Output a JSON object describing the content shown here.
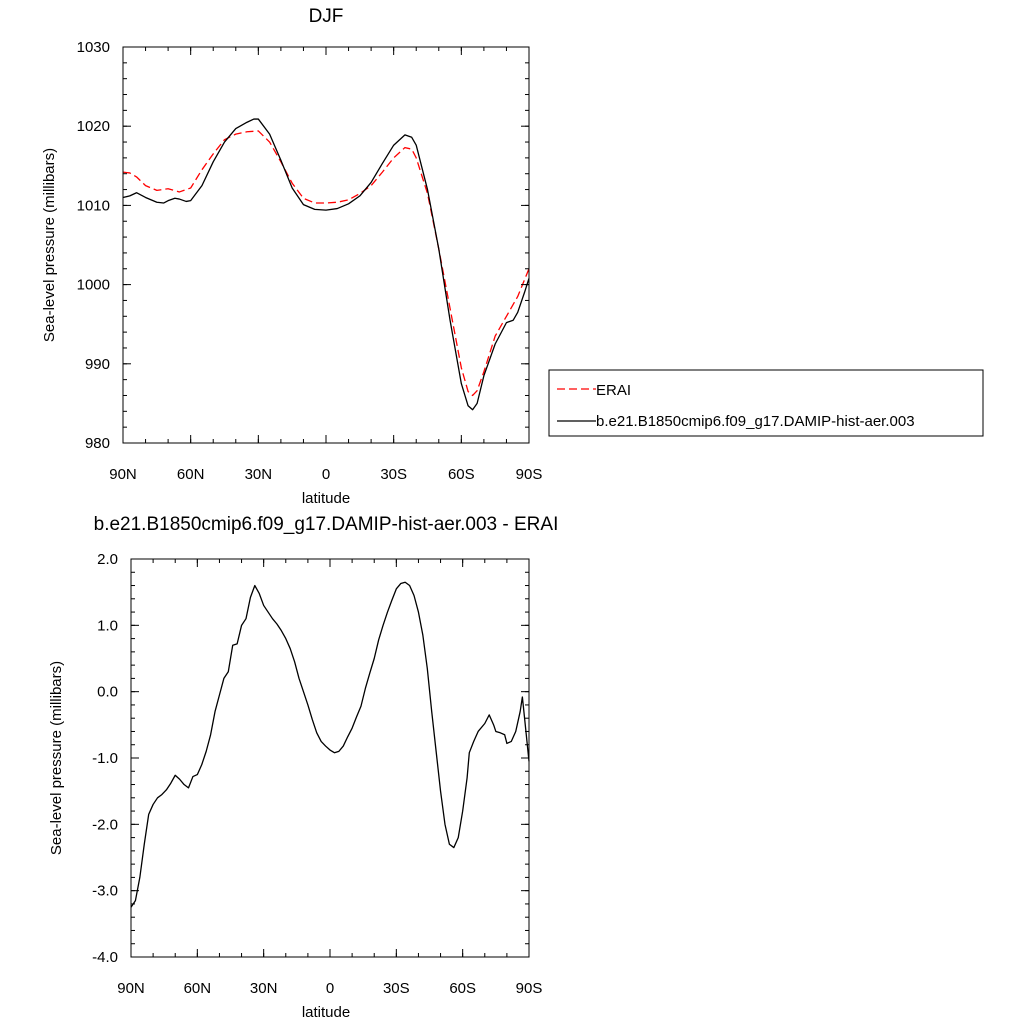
{
  "chart_data": [
    {
      "type": "line",
      "title": "DJF",
      "xlabel": "latitude",
      "ylabel": "Sea-level pressure (millibars)",
      "xlim": [
        90,
        -90
      ],
      "ylim": [
        980,
        1030
      ],
      "x_ticks": [
        {
          "value": 90,
          "label": "90N"
        },
        {
          "value": 60,
          "label": "60N"
        },
        {
          "value": 30,
          "label": "30N"
        },
        {
          "value": 0,
          "label": "0"
        },
        {
          "value": -30,
          "label": "30S"
        },
        {
          "value": -60,
          "label": "60S"
        },
        {
          "value": -90,
          "label": "90S"
        }
      ],
      "y_ticks": [
        {
          "value": 980,
          "label": "980"
        },
        {
          "value": 990,
          "label": "990"
        },
        {
          "value": 1000,
          "label": "1000"
        },
        {
          "value": 1010,
          "label": "1010"
        },
        {
          "value": 1020,
          "label": "1020"
        },
        {
          "value": 1030,
          "label": "1030"
        }
      ],
      "legend_position": "right",
      "series": [
        {
          "name": "ERAI",
          "color": "#ff0000",
          "style": "dashed",
          "x": [
            90,
            87,
            84,
            80,
            75,
            70,
            65,
            60,
            55,
            50,
            45,
            40,
            35,
            30,
            25,
            20,
            15,
            10,
            5,
            0,
            -5,
            -10,
            -15,
            -20,
            -25,
            -30,
            -35,
            -38,
            -40,
            -45,
            -50,
            -55,
            -60,
            -63,
            -65,
            -67,
            -70,
            -75,
            -80,
            -85,
            -90
          ],
          "values": [
            1014.2,
            1014.1,
            1013.6,
            1012.5,
            1011.9,
            1012.1,
            1011.7,
            1012.2,
            1014.5,
            1016.5,
            1018.3,
            1019.0,
            1019.3,
            1019.4,
            1018.0,
            1015.5,
            1012.8,
            1010.9,
            1010.3,
            1010.3,
            1010.4,
            1010.7,
            1011.5,
            1012.5,
            1014.2,
            1016.0,
            1017.3,
            1017.1,
            1016.0,
            1011.5,
            1004.5,
            997.0,
            989.5,
            986.5,
            986.0,
            986.6,
            989.0,
            993.5,
            996.0,
            998.5,
            1002.0
          ]
        },
        {
          "name": "b.e21.B1850cmip6.f09_g17.DAMIP-hist-aer.003",
          "color": "#000000",
          "style": "solid",
          "x": [
            90,
            87,
            84,
            80,
            75,
            72,
            70,
            67,
            65,
            62,
            60,
            55,
            50,
            45,
            40,
            35,
            32,
            30,
            25,
            20,
            15,
            10,
            5,
            0,
            -5,
            -10,
            -15,
            -20,
            -25,
            -30,
            -35,
            -38,
            -40,
            -45,
            -50,
            -55,
            -60,
            -63,
            -65,
            -67,
            -70,
            -75,
            -80,
            -83,
            -85,
            -88,
            -90
          ],
          "values": [
            1011.0,
            1011.2,
            1011.6,
            1011.0,
            1010.4,
            1010.3,
            1010.6,
            1010.9,
            1010.8,
            1010.5,
            1010.6,
            1012.5,
            1015.5,
            1018.0,
            1019.7,
            1020.5,
            1020.9,
            1020.9,
            1019.0,
            1015.7,
            1012.2,
            1010.1,
            1009.5,
            1009.4,
            1009.6,
            1010.2,
            1011.2,
            1012.9,
            1015.3,
            1017.6,
            1018.9,
            1018.6,
            1017.6,
            1012.0,
            1004.5,
            995.5,
            987.5,
            984.7,
            984.2,
            985.0,
            988.5,
            992.5,
            995.2,
            995.5,
            996.5,
            999.0,
            1000.8
          ]
        }
      ]
    },
    {
      "type": "line",
      "title": "b.e21.B1850cmip6.f09_g17.DAMIP-hist-aer.003 - ERAI",
      "xlabel": "latitude",
      "ylabel": "Sea-level pressure (millibars)",
      "xlim": [
        90,
        -90
      ],
      "ylim": [
        -4.0,
        2.0
      ],
      "x_ticks": [
        {
          "value": 90,
          "label": "90N"
        },
        {
          "value": 60,
          "label": "60N"
        },
        {
          "value": 30,
          "label": "30N"
        },
        {
          "value": 0,
          "label": "0"
        },
        {
          "value": -30,
          "label": "30S"
        },
        {
          "value": -60,
          "label": "60S"
        },
        {
          "value": -90,
          "label": "90S"
        }
      ],
      "y_ticks": [
        {
          "value": -4.0,
          "label": "-4.0"
        },
        {
          "value": -3.0,
          "label": "-3.0"
        },
        {
          "value": -2.0,
          "label": "-2.0"
        },
        {
          "value": -1.0,
          "label": "-1.0"
        },
        {
          "value": 0.0,
          "label": "0.0"
        },
        {
          "value": 1.0,
          "label": "1.0"
        },
        {
          "value": 2.0,
          "label": "2.0"
        }
      ],
      "series": [
        {
          "color": "#000000",
          "style": "solid",
          "x": [
            90,
            88,
            86,
            84,
            82,
            80,
            78,
            76,
            74,
            72,
            70,
            68,
            66,
            64,
            62,
            60,
            58,
            56,
            54,
            52,
            50,
            48,
            46,
            44,
            42,
            40,
            38,
            36,
            34,
            32,
            30,
            28,
            26,
            24,
            22,
            20,
            18,
            16,
            14,
            12,
            10,
            8,
            6,
            4,
            2,
            0,
            -2,
            -4,
            -6,
            -8,
            -10,
            -12,
            -14,
            -16,
            -18,
            -20,
            -22,
            -24,
            -26,
            -28,
            -30,
            -32,
            -34,
            -36,
            -38,
            -40,
            -42,
            -44,
            -46,
            -48,
            -50,
            -52,
            -54,
            -56,
            -58,
            -60,
            -62,
            -63,
            -65,
            -67,
            -70,
            -72,
            -74,
            -75,
            -77,
            -79,
            -80,
            -82,
            -84,
            -86,
            -87,
            -88,
            -90
          ],
          "values": [
            -3.25,
            -3.15,
            -2.8,
            -2.3,
            -1.85,
            -1.7,
            -1.6,
            -1.55,
            -1.48,
            -1.38,
            -1.26,
            -1.32,
            -1.4,
            -1.45,
            -1.28,
            -1.25,
            -1.1,
            -0.9,
            -0.65,
            -0.3,
            -0.05,
            0.2,
            0.3,
            0.7,
            0.72,
            1.0,
            1.1,
            1.42,
            1.6,
            1.48,
            1.3,
            1.2,
            1.1,
            1.02,
            0.92,
            0.8,
            0.65,
            0.45,
            0.2,
            0.0,
            -0.2,
            -0.42,
            -0.62,
            -0.75,
            -0.82,
            -0.88,
            -0.92,
            -0.9,
            -0.82,
            -0.68,
            -0.55,
            -0.38,
            -0.22,
            0.05,
            0.28,
            0.5,
            0.78,
            1.0,
            1.2,
            1.38,
            1.55,
            1.63,
            1.65,
            1.6,
            1.45,
            1.2,
            0.85,
            0.35,
            -0.3,
            -0.9,
            -1.5,
            -2.0,
            -2.3,
            -2.35,
            -2.2,
            -1.8,
            -1.3,
            -0.92,
            -0.75,
            -0.6,
            -0.48,
            -0.35,
            -0.5,
            -0.6,
            -0.62,
            -0.65,
            -0.78,
            -0.75,
            -0.6,
            -0.3,
            -0.08,
            -0.4,
            -1.05
          ]
        }
      ]
    }
  ]
}
